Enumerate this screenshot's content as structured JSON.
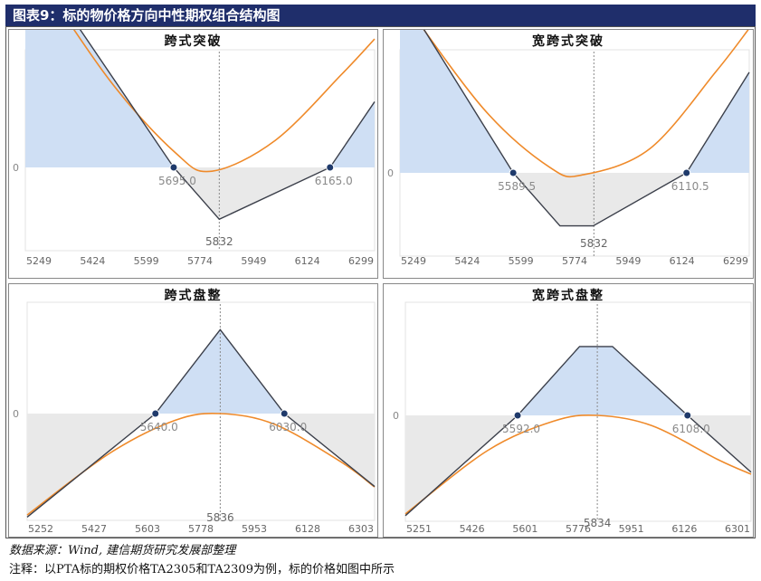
{
  "header": {
    "title": "图表9：标的物价格方向中性期权组合结构图"
  },
  "footer": {
    "source": "数据来源：Wind, 建信期货研究发展部整理",
    "note": "注释：以PTA标的期权价格TA2305和TA2309为例，标的价格如图中所示"
  },
  "colors": {
    "header_bg": "#1f2e6b",
    "expiry_line": "#3b3f4a",
    "current_curve": "#ef8a2a",
    "profit_fill": "#cfdff4",
    "loss_fill": "#e9e9e9",
    "marker": "#1f3a6b"
  },
  "chart_data": [
    {
      "type": "line",
      "title": "跨式突破",
      "x_ticks": [
        "5249",
        "5424",
        "5599",
        "5774",
        "5949",
        "6124",
        "6299"
      ],
      "xlim": [
        5249,
        6299
      ],
      "zero_label": "0",
      "center_label": "5832",
      "center": 5832,
      "breakevens": [
        {
          "x": 5695.0,
          "label": "5695.0"
        },
        {
          "x": 6165.0,
          "label": "6165.0"
        }
      ],
      "payoff": {
        "x": [
          5249,
          5695,
          5832,
          6165,
          6299
        ],
        "y": [
          446,
          0,
          -137,
          0,
          134
        ]
      },
      "curve_sample": {
        "x": [
          5249,
          5500,
          5700,
          5810,
          6000,
          6200,
          6299
        ],
        "y": [
          430,
          180,
          30,
          -10,
          55,
          190,
          262
        ]
      }
    },
    {
      "type": "line",
      "title": "宽跨式突破",
      "x_ticks": [
        "5249",
        "5424",
        "5599",
        "5774",
        "5949",
        "6124",
        "6299"
      ],
      "xlim": [
        5249,
        6299
      ],
      "zero_label": "0",
      "center_label": "5832",
      "center": 5832,
      "breakevens": [
        {
          "x": 5589.5,
          "label": "5589.5"
        },
        {
          "x": 6110.5,
          "label": "6110.5"
        }
      ],
      "payoff": {
        "x": [
          5249,
          5589.5,
          5730,
          5830,
          6110.5,
          6299
        ],
        "y": [
          340,
          0,
          -140,
          -140,
          0,
          188
        ]
      },
      "curve_sample": {
        "x": [
          5249,
          5500,
          5700,
          5800,
          6000,
          6200,
          6299
        ],
        "y": [
          330,
          120,
          10,
          -5,
          45,
          190,
          270
        ]
      }
    },
    {
      "type": "line",
      "title": "跨式盘整",
      "x_ticks": [
        "5252",
        "5427",
        "5603",
        "5778",
        "5953",
        "6128",
        "6303"
      ],
      "xlim": [
        5252,
        6303
      ],
      "zero_label": "0",
      "center_label": "5836",
      "center": 5836,
      "breakevens": [
        {
          "x": 5640.0,
          "label": "5640.0"
        },
        {
          "x": 6030.0,
          "label": "6030.0"
        }
      ],
      "payoff": {
        "x": [
          5252,
          5640,
          5836,
          6030,
          6303
        ],
        "y": [
          -388,
          0,
          196,
          0,
          -273
        ]
      },
      "curve_sample": {
        "x": [
          5252,
          5500,
          5700,
          5836,
          6000,
          6200,
          6303
        ],
        "y": [
          -380,
          -150,
          -25,
          0,
          -40,
          -180,
          -275
        ]
      }
    },
    {
      "type": "line",
      "title": "宽跨式盘整",
      "x_ticks": [
        "5251",
        "5426",
        "5601",
        "5776",
        "5951",
        "6126",
        "6301"
      ],
      "xlim": [
        5251,
        6301
      ],
      "zero_label": "0",
      "center_label": "5834",
      "center": 5834,
      "breakevens": [
        {
          "x": 5592.0,
          "label": "5592.0"
        },
        {
          "x": 6108.0,
          "label": "6108.0"
        }
      ],
      "payoff": {
        "x": [
          5251,
          5592,
          5780,
          5880,
          6108,
          6301
        ],
        "y": [
          -341,
          0,
          140,
          140,
          0,
          -193
        ]
      },
      "curve_sample": {
        "x": [
          5251,
          5500,
          5700,
          5834,
          6000,
          6200,
          6301
        ],
        "y": [
          -335,
          -120,
          -20,
          0,
          -35,
          -150,
          -200
        ]
      }
    }
  ]
}
